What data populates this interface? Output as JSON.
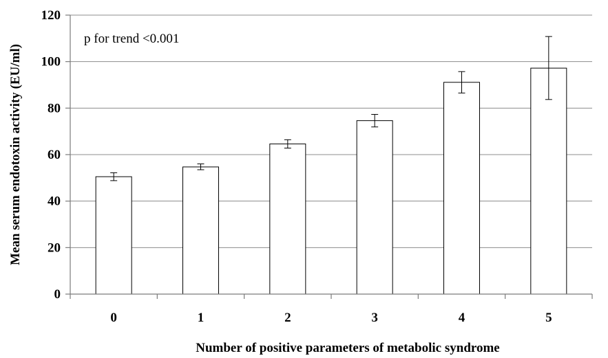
{
  "chart_data": {
    "type": "bar",
    "categories": [
      "0",
      "1",
      "2",
      "3",
      "4",
      "5"
    ],
    "values": [
      50.5,
      54.7,
      64.6,
      74.6,
      91.1,
      97.2
    ],
    "error_bars": [
      {
        "low": 48.8,
        "high": 52.2
      },
      {
        "low": 53.5,
        "high": 56.0
      },
      {
        "low": 62.8,
        "high": 66.4
      },
      {
        "low": 71.9,
        "high": 77.3
      },
      {
        "low": 86.5,
        "high": 95.7
      },
      {
        "low": 83.7,
        "high": 110.8
      }
    ],
    "title": "",
    "xlabel": "Number of positive parameters of metabolic syndrome",
    "ylabel": "Mean serum endotoxin activity (EU/ml)",
    "ylim": [
      0,
      120
    ],
    "yticks": [
      "0",
      "20",
      "40",
      "60",
      "80",
      "100",
      "120"
    ],
    "grid": true,
    "annotation": "p for trend <0.001",
    "colors": {
      "bar_fill": "#ffffff",
      "bar_stroke": "#000000",
      "grid": "#8c8c8c"
    }
  }
}
